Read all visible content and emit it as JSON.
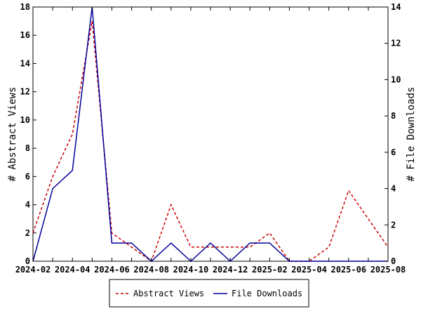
{
  "chart_data": {
    "type": "line",
    "x": [
      "2024-02",
      "2024-03",
      "2024-04",
      "2024-05",
      "2024-06",
      "2024-07",
      "2024-08",
      "2024-09",
      "2024-10",
      "2024-11",
      "2024-12",
      "2025-01",
      "2025-02",
      "2025-03",
      "2025-04",
      "2025-05",
      "2025-06",
      "2025-07",
      "2025-08"
    ],
    "x_ticks": [
      "2024-02",
      "2024-04",
      "2024-06",
      "2024-08",
      "2024-10",
      "2024-12",
      "2025-02",
      "2025-04",
      "2025-06",
      "2025-08"
    ],
    "ylabel": "# Abstract Views",
    "y2label": "# File Downloads",
    "ylim": [
      0,
      18
    ],
    "y2lim": [
      0,
      14
    ],
    "yticks": [
      0,
      2,
      4,
      6,
      8,
      10,
      12,
      14,
      16,
      18
    ],
    "y2ticks": [
      0,
      2,
      4,
      6,
      8,
      10,
      12,
      14
    ],
    "legend_position": "bottom",
    "series": [
      {
        "name": "Abstract Views",
        "axis": "left",
        "color": "#cc0000",
        "style": "dashed",
        "values": [
          2,
          6,
          9,
          17,
          2,
          1,
          0,
          4,
          1,
          1,
          1,
          1,
          2,
          0,
          0,
          1,
          5,
          3,
          1
        ]
      },
      {
        "name": "File Downloads",
        "axis": "right",
        "color": "#000099",
        "style": "solid",
        "values": [
          0,
          4,
          5,
          14,
          1,
          1,
          0,
          1,
          0,
          1,
          0,
          1,
          1,
          0,
          0,
          0,
          0,
          0,
          0
        ]
      }
    ]
  }
}
